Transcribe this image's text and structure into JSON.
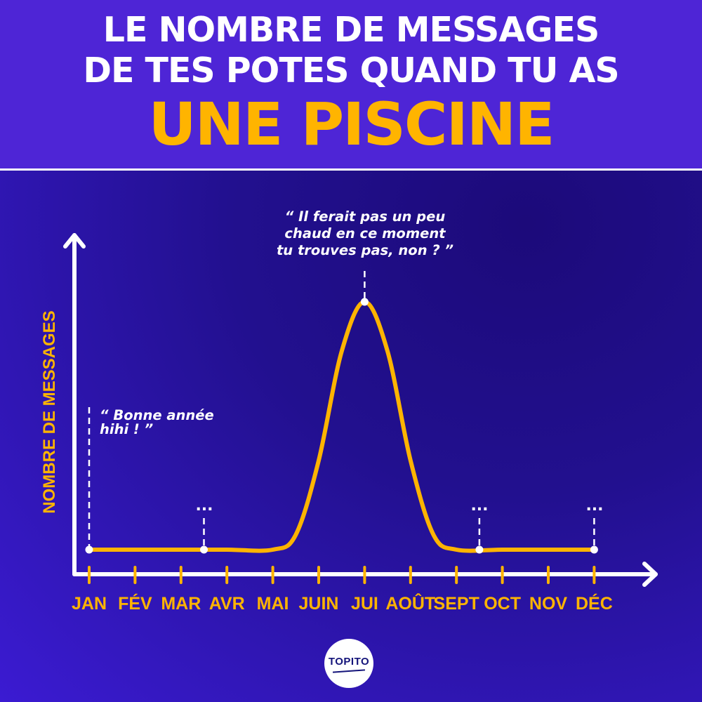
{
  "header": {
    "title_line1": "LE NOMBRE DE MESSAGES",
    "title_line2": "DE TES POTES QUAND TU AS",
    "title_line3": "UNE PISCINE"
  },
  "colors": {
    "header_bg": "#4e25d6",
    "accent": "#ffb400",
    "axis": "#ffffff",
    "curve": "#ffb400",
    "logo_text": "#14147a"
  },
  "brand": {
    "logo_text": "TOPITO"
  },
  "chart_data": {
    "type": "line",
    "title": "",
    "xlabel": "",
    "ylabel": "NOMBRE DE MESSAGES",
    "categories": [
      "JAN",
      "FÉV",
      "MAR",
      "AVR",
      "MAI",
      "JUIN",
      "JUI",
      "AOÛT",
      "SEPT",
      "OCT",
      "NOV",
      "DÉC"
    ],
    "ylim": [
      0,
      100
    ],
    "y_ticks": false,
    "grid": false,
    "series": [
      {
        "x": [
          0,
          1,
          2,
          3,
          4,
          4.5,
          5,
          5.5,
          6,
          6.5,
          7,
          7.5,
          8,
          9,
          10,
          11
        ],
        "y": [
          0,
          0,
          0,
          0,
          0,
          6,
          36,
          80,
          100,
          80,
          36,
          6,
          0,
          0,
          0,
          0
        ]
      }
    ],
    "markers": [
      {
        "x": 0,
        "y": 0,
        "text": "“ Bonne année\nhihi ! ”"
      },
      {
        "x": 2.5,
        "y": 0,
        "text": "..."
      },
      {
        "x": 6,
        "y": 100,
        "text": "“ Il ferait pas un peu\nchaud en ce moment\ntu trouves pas, non ? ”"
      },
      {
        "x": 8.5,
        "y": 0,
        "text": "..."
      },
      {
        "x": 11,
        "y": 0,
        "text": "..."
      }
    ]
  }
}
